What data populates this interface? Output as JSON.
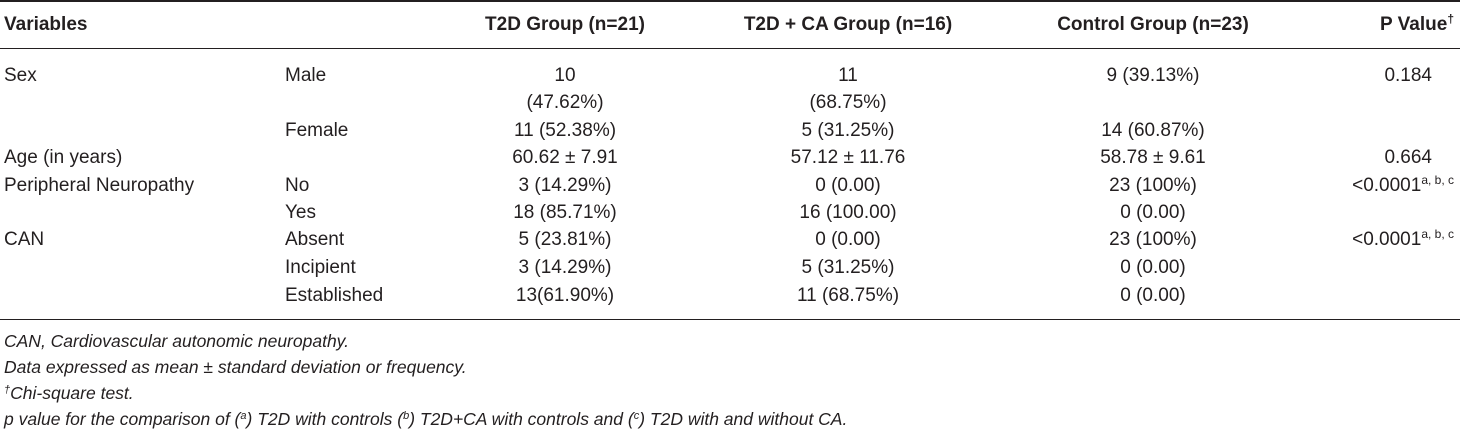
{
  "header": {
    "variables": "Variables",
    "t2d": "T2D Group (n=21)",
    "t2d_ca": "T2D + CA Group (n=16)",
    "control": "Control Group (n=23)",
    "p_value": "P Value",
    "p_value_mark": "†"
  },
  "rows": {
    "sex_male": {
      "variable": "Sex",
      "sub": "Male",
      "t2d_l1": "10",
      "t2d_l2": "(47.62%)",
      "ca_l1": "11",
      "ca_l2": "(68.75%)",
      "control": "9 (39.13%)",
      "p": "0.184"
    },
    "sex_female": {
      "sub": "Female",
      "t2d": "11 (52.38%)",
      "ca": "5 (31.25%)",
      "control": "14 (60.87%)"
    },
    "age": {
      "variable": "Age (in years)",
      "t2d": "60.62 ± 7.91",
      "ca": "57.12 ± 11.76",
      "control": "58.78 ± 9.61",
      "p": "0.664"
    },
    "pn_no": {
      "variable": "Peripheral Neuropathy",
      "sub": "No",
      "t2d": "3 (14.29%)",
      "ca": "0 (0.00)",
      "control": "23 (100%)",
      "p": "<0.0001",
      "p_sup": "a, b, c"
    },
    "pn_yes": {
      "sub": "Yes",
      "t2d": "18 (85.71%)",
      "ca": "16 (100.00)",
      "control": "0 (0.00)"
    },
    "can_absent": {
      "variable": "CAN",
      "sub": "Absent",
      "t2d": "5 (23.81%)",
      "ca": "0 (0.00)",
      "control": "23 (100%)",
      "p": "<0.0001",
      "p_sup": "a, b, c"
    },
    "can_incipient": {
      "sub": "Incipient",
      "t2d": "3 (14.29%)",
      "ca": "5 (31.25%)",
      "control": "0 (0.00)"
    },
    "can_established": {
      "sub": "Established",
      "t2d": "13(61.90%)",
      "ca": "11 (68.75%)",
      "control": "0 (0.00)"
    }
  },
  "notes": {
    "can": "CAN, Cardiovascular autonomic neuropathy.",
    "data": "Data expressed as mean ± standard deviation or frequency.",
    "chi_mark": "†",
    "chi": "Chi-square test.",
    "p_pre": "p value for the comparison of (",
    "p_a": "a",
    "p_mid1": ") T2D with controls (",
    "p_b": "b",
    "p_mid2": ") T2D+CA with controls and (",
    "p_c": "c",
    "p_post": ") T2D with and without CA."
  }
}
